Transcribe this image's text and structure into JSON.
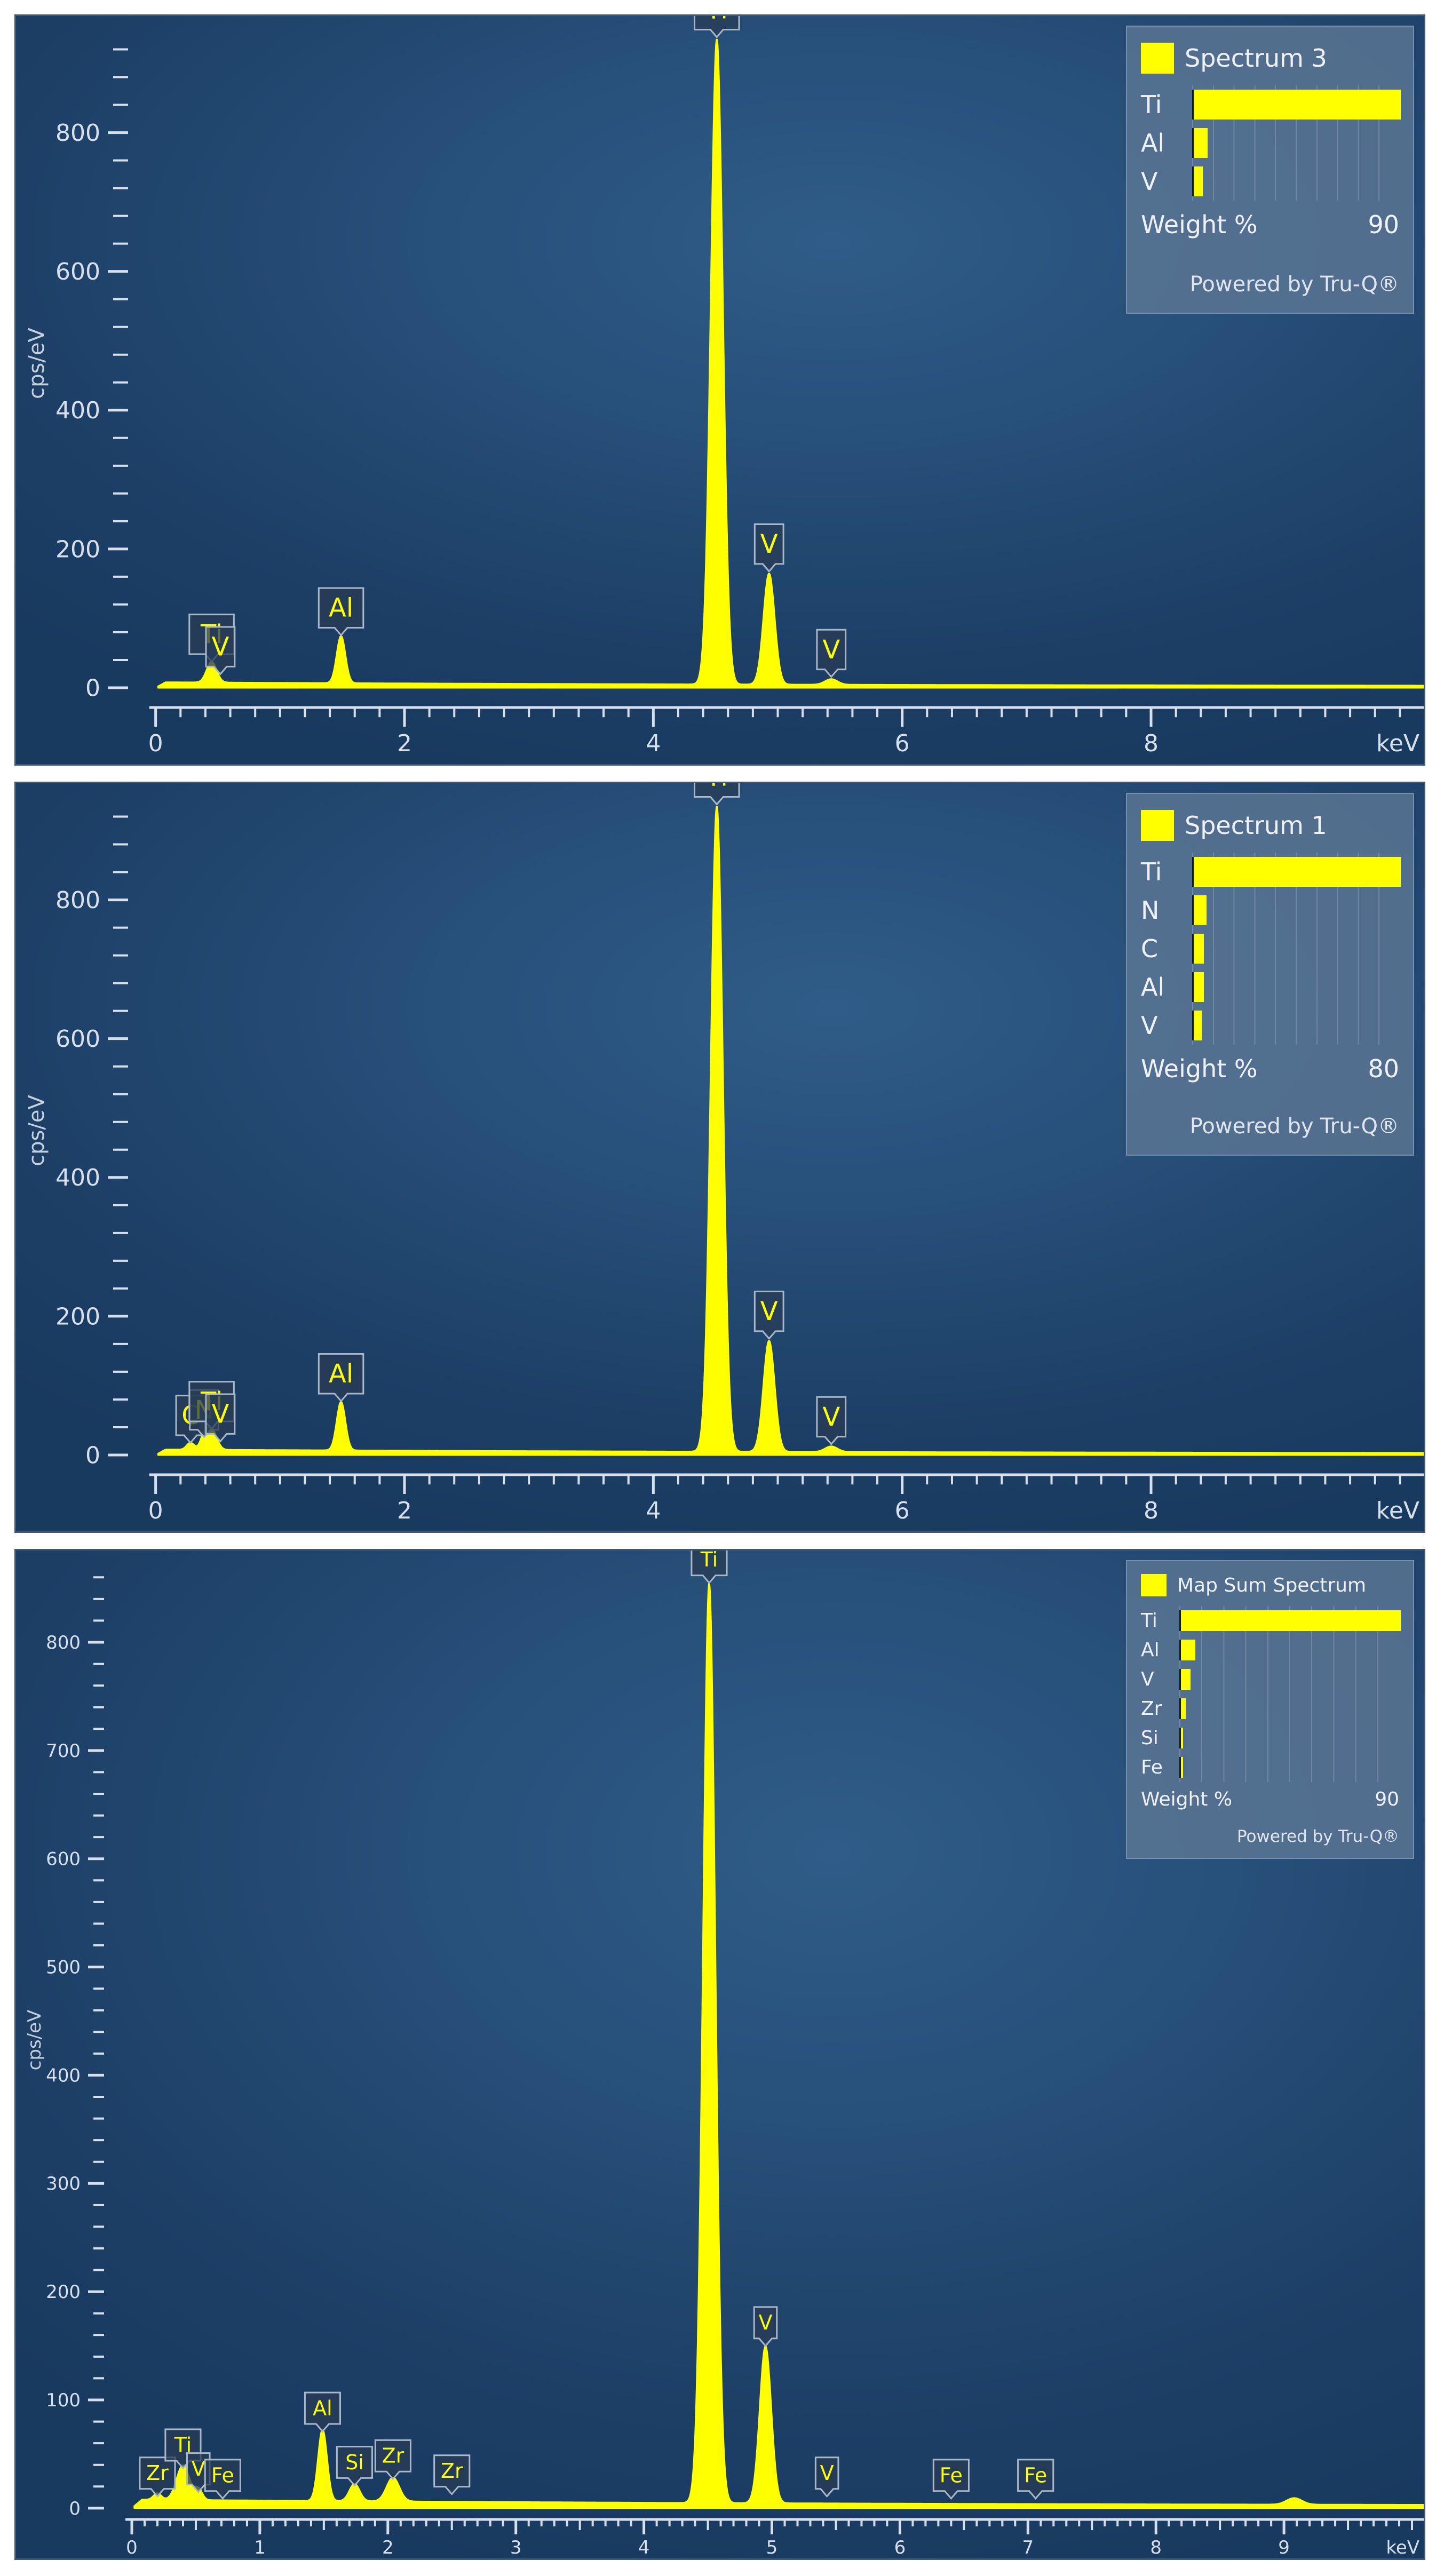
{
  "chart_data": [
    {
      "type": "area",
      "ylabel": "cps/eV",
      "xunit": "keV",
      "xlim": [
        -0.05,
        10.2
      ],
      "ylim": [
        -10,
        945
      ],
      "xticks": [
        0,
        2,
        4,
        6,
        8
      ],
      "yticks": [
        0,
        200,
        400,
        600,
        800
      ],
      "series": [
        {
          "name": "Spectrum 3",
          "color": "#ffff00",
          "peaks": [
            {
              "x": 0.45,
              "y": 30,
              "w": 0.04
            },
            {
              "x": 1.49,
              "y": 68,
              "w": 0.035
            },
            {
              "x": 4.51,
              "y": 930,
              "w": 0.048
            },
            {
              "x": 4.93,
              "y": 160,
              "w": 0.045
            },
            {
              "x": 5.43,
              "y": 8,
              "w": 0.05
            }
          ],
          "baseline": 6
        }
      ],
      "peak_labels": [
        {
          "text": "Ti",
          "x": 0.45,
          "y": 30
        },
        {
          "text": "V",
          "x": 0.52,
          "y": 12
        },
        {
          "text": "Al",
          "x": 1.49,
          "y": 68
        },
        {
          "text": "Ti",
          "x": 4.51,
          "y": 930
        },
        {
          "text": "V",
          "x": 4.93,
          "y": 160
        },
        {
          "text": "V",
          "x": 5.43,
          "y": 8
        }
      ],
      "legend": {
        "title": "Spectrum 3",
        "elements": [
          {
            "label": "Ti",
            "value": 90
          },
          {
            "label": "Al",
            "value": 6
          },
          {
            "label": "V",
            "value": 4
          }
        ],
        "axis_label": "Weight %",
        "axis_max_label": "90",
        "powered_by": "Powered by Tru-Q®"
      }
    },
    {
      "type": "area",
      "ylabel": "cps/eV",
      "xunit": "keV",
      "xlim": [
        -0.05,
        10.2
      ],
      "ylim": [
        -10,
        945
      ],
      "xticks": [
        0,
        2,
        4,
        6,
        8
      ],
      "yticks": [
        0,
        200,
        400,
        600,
        800
      ],
      "series": [
        {
          "name": "Spectrum 1",
          "color": "#ffff00",
          "peaks": [
            {
              "x": 0.28,
              "y": 10,
              "w": 0.03
            },
            {
              "x": 0.39,
              "y": 18,
              "w": 0.03
            },
            {
              "x": 0.45,
              "y": 30,
              "w": 0.04
            },
            {
              "x": 1.49,
              "y": 70,
              "w": 0.035
            },
            {
              "x": 4.51,
              "y": 930,
              "w": 0.048
            },
            {
              "x": 4.93,
              "y": 160,
              "w": 0.045
            },
            {
              "x": 5.43,
              "y": 8,
              "w": 0.05
            }
          ],
          "baseline": 6
        }
      ],
      "peak_labels": [
        {
          "text": "C",
          "x": 0.28,
          "y": 10
        },
        {
          "text": "N",
          "x": 0.39,
          "y": 18
        },
        {
          "text": "Ti",
          "x": 0.45,
          "y": 30
        },
        {
          "text": "V",
          "x": 0.52,
          "y": 12
        },
        {
          "text": "Al",
          "x": 1.49,
          "y": 70
        },
        {
          "text": "Ti",
          "x": 4.51,
          "y": 930
        },
        {
          "text": "V",
          "x": 4.93,
          "y": 160
        },
        {
          "text": "V",
          "x": 5.43,
          "y": 8
        }
      ],
      "legend": {
        "title": "Spectrum 1",
        "elements": [
          {
            "label": "Ti",
            "value": 80
          },
          {
            "label": "N",
            "value": 5
          },
          {
            "label": "C",
            "value": 4
          },
          {
            "label": "Al",
            "value": 4
          },
          {
            "label": "V",
            "value": 3
          }
        ],
        "axis_label": "Weight %",
        "axis_max_label": "80",
        "powered_by": "Powered by Tru-Q®"
      }
    },
    {
      "type": "area",
      "ylabel": "cps/eV",
      "xunit": "keV",
      "xlim": [
        -0.05,
        10.1
      ],
      "ylim": [
        -5,
        870
      ],
      "xticks": [
        0,
        1,
        2,
        3,
        4,
        5,
        6,
        7,
        8,
        9
      ],
      "yticks": [
        0,
        100,
        200,
        300,
        400,
        500,
        600,
        700,
        800
      ],
      "series": [
        {
          "name": "Map Sum Spectrum",
          "color": "#ffff00",
          "peaks": [
            {
              "x": 0.2,
              "y": 6,
              "w": 0.03
            },
            {
              "x": 0.4,
              "y": 32,
              "w": 0.05
            },
            {
              "x": 0.52,
              "y": 10,
              "w": 0.03
            },
            {
              "x": 1.49,
              "y": 66,
              "w": 0.035
            },
            {
              "x": 1.74,
              "y": 16,
              "w": 0.04
            },
            {
              "x": 2.04,
              "y": 22,
              "w": 0.05
            },
            {
              "x": 4.51,
              "y": 850,
              "w": 0.048
            },
            {
              "x": 4.95,
              "y": 145,
              "w": 0.045
            },
            {
              "x": 9.08,
              "y": 6,
              "w": 0.06
            }
          ],
          "baseline": 6
        }
      ],
      "peak_labels": [
        {
          "text": "Zr",
          "x": 0.2,
          "y": 6
        },
        {
          "text": "Ti",
          "x": 0.4,
          "y": 32
        },
        {
          "text": "V",
          "x": 0.52,
          "y": 10
        },
        {
          "text": "Fe",
          "x": 0.71,
          "y": 4
        },
        {
          "text": "Al",
          "x": 1.49,
          "y": 66
        },
        {
          "text": "Si",
          "x": 1.74,
          "y": 16
        },
        {
          "text": "Zr",
          "x": 2.04,
          "y": 22
        },
        {
          "text": "Zr",
          "x": 2.5,
          "y": 8
        },
        {
          "text": "Ti",
          "x": 4.51,
          "y": 850
        },
        {
          "text": "V",
          "x": 4.95,
          "y": 145
        },
        {
          "text": "V",
          "x": 5.43,
          "y": 6
        },
        {
          "text": "Fe",
          "x": 6.4,
          "y": 4
        },
        {
          "text": "Fe",
          "x": 7.06,
          "y": 4
        }
      ],
      "legend": {
        "title": "Map Sum Spectrum",
        "elements": [
          {
            "label": "Ti",
            "value": 90
          },
          {
            "label": "Al",
            "value": 6
          },
          {
            "label": "V",
            "value": 4
          },
          {
            "label": "Zr",
            "value": 2
          },
          {
            "label": "Si",
            "value": 0.4
          },
          {
            "label": "Fe",
            "value": 0.3
          }
        ],
        "axis_label": "Weight %",
        "axis_max_label": "90",
        "powered_by": "Powered by Tru-Q®"
      }
    }
  ]
}
